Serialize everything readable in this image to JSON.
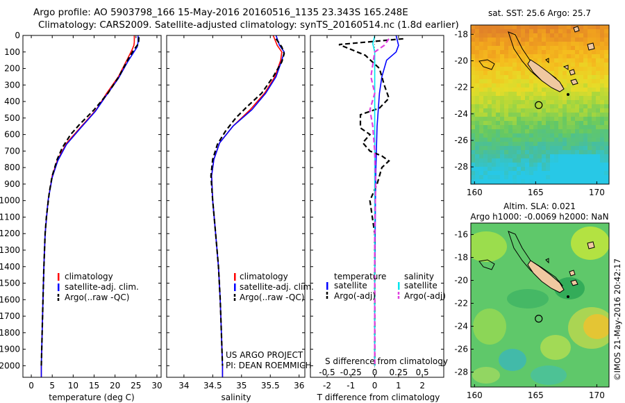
{
  "header": {
    "title_line1": "Argo profile: AO 5903798_166 15-May-2016 20160516_1135 23.343S 165.248E",
    "title_line2": "Climatology: CARS2009. Satellite-adjusted climatology: synTS_20160514.nc (1.8d earlier)"
  },
  "credit": "©IMOS 21-May-2016 20:42:17",
  "project": {
    "line1": "US ARGO PROJECT",
    "line2": "PI: DEAN ROEMMICH"
  },
  "colors": {
    "climatology": "#ff0000",
    "satellite": "#0000ff",
    "argo": "#000000",
    "salinity_satellite": "#00e5ee",
    "salinity_argo": "#e040e0",
    "land": "#f0c8a0"
  },
  "chart_data": [
    {
      "type": "line",
      "id": "temperature",
      "xlabel": "temperature (deg C)",
      "ylabel": "",
      "xlim": [
        -2,
        31
      ],
      "ylim": [
        2070,
        0
      ],
      "xticks": [
        0,
        5,
        10,
        15,
        20,
        25,
        30
      ],
      "yticks": [
        0,
        100,
        200,
        300,
        400,
        500,
        600,
        700,
        800,
        900,
        1000,
        1100,
        1200,
        1300,
        1400,
        1500,
        1600,
        1700,
        1800,
        1900,
        2000
      ],
      "legend": [
        "climatology",
        "satellite-adj. clim.",
        "Argo(..raw -QC)"
      ],
      "series": [
        {
          "name": "climatology",
          "style": "solid",
          "color": "#ff0000",
          "points": [
            [
              24.6,
              0
            ],
            [
              24.6,
              40
            ],
            [
              24.5,
              60
            ],
            [
              24.0,
              90
            ],
            [
              22.8,
              150
            ],
            [
              20.8,
              250
            ],
            [
              18.0,
              350
            ],
            [
              15.5,
              450
            ],
            [
              12.0,
              550
            ],
            [
              8.5,
              650
            ],
            [
              6.3,
              750
            ],
            [
              5.0,
              850
            ],
            [
              4.0,
              1000
            ],
            [
              3.3,
              1200
            ],
            [
              3.0,
              1400
            ],
            [
              2.8,
              1600
            ],
            [
              2.6,
              1800
            ],
            [
              2.4,
              2000
            ],
            [
              2.4,
              2070
            ]
          ]
        },
        {
          "name": "satellite-adj. clim.",
          "style": "solid",
          "color": "#0000ff",
          "points": [
            [
              25.5,
              0
            ],
            [
              25.5,
              40
            ],
            [
              25.3,
              70
            ],
            [
              24.5,
              100
            ],
            [
              23.0,
              160
            ],
            [
              20.8,
              260
            ],
            [
              18.0,
              360
            ],
            [
              15.3,
              460
            ],
            [
              11.8,
              560
            ],
            [
              8.4,
              660
            ],
            [
              6.3,
              760
            ],
            [
              5.0,
              860
            ],
            [
              4.0,
              1000
            ],
            [
              3.3,
              1200
            ],
            [
              3.0,
              1400
            ],
            [
              2.8,
              1600
            ],
            [
              2.6,
              1800
            ],
            [
              2.4,
              2000
            ],
            [
              2.4,
              2070
            ]
          ]
        },
        {
          "name": "Argo(..raw -QC)",
          "style": "dashed",
          "color": "#000000",
          "points": [
            [
              25.7,
              10
            ],
            [
              25.6,
              50
            ],
            [
              24.4,
              90
            ],
            [
              23.0,
              150
            ],
            [
              20.9,
              250
            ],
            [
              18.3,
              350
            ],
            [
              15.0,
              450
            ],
            [
              11.5,
              540
            ],
            [
              9.4,
              600
            ],
            [
              7.4,
              680
            ],
            [
              6.2,
              750
            ],
            [
              5.0,
              850
            ],
            [
              4.3,
              950
            ],
            [
              3.6,
              1100
            ],
            [
              3.3,
              1200
            ],
            [
              3.0,
              1400
            ],
            [
              2.8,
              1600
            ],
            [
              2.6,
              1800
            ],
            [
              2.4,
              2000
            ]
          ]
        }
      ]
    },
    {
      "type": "line",
      "id": "salinity",
      "xlabel": "salinity",
      "ylabel": "",
      "xlim": [
        33.7,
        36.1
      ],
      "ylim": [
        2070,
        0
      ],
      "xticks": [
        34,
        34.5,
        35,
        35.5,
        36
      ],
      "legend": [
        "climatology",
        "satellite-adj. clim.",
        "Argo(..raw -QC)"
      ],
      "series": [
        {
          "name": "climatology",
          "style": "solid",
          "color": "#ff0000",
          "points": [
            [
              35.55,
              0
            ],
            [
              35.62,
              60
            ],
            [
              35.7,
              100
            ],
            [
              35.68,
              150
            ],
            [
              35.58,
              250
            ],
            [
              35.4,
              350
            ],
            [
              35.15,
              450
            ],
            [
              34.85,
              550
            ],
            [
              34.62,
              650
            ],
            [
              34.52,
              750
            ],
            [
              34.48,
              850
            ],
            [
              34.5,
              1000
            ],
            [
              34.55,
              1200
            ],
            [
              34.6,
              1400
            ],
            [
              34.63,
              1600
            ],
            [
              34.65,
              1800
            ],
            [
              34.67,
              2000
            ],
            [
              34.67,
              2070
            ]
          ]
        },
        {
          "name": "satellite-adj. clim.",
          "style": "solid",
          "color": "#0000ff",
          "points": [
            [
              35.6,
              0
            ],
            [
              35.66,
              60
            ],
            [
              35.74,
              100
            ],
            [
              35.7,
              150
            ],
            [
              35.6,
              250
            ],
            [
              35.42,
              350
            ],
            [
              35.18,
              450
            ],
            [
              34.85,
              550
            ],
            [
              34.62,
              650
            ],
            [
              34.52,
              750
            ],
            [
              34.48,
              850
            ],
            [
              34.5,
              1000
            ],
            [
              34.55,
              1200
            ],
            [
              34.6,
              1400
            ],
            [
              34.63,
              1600
            ],
            [
              34.65,
              1800
            ],
            [
              34.67,
              2000
            ],
            [
              34.67,
              2070
            ]
          ]
        },
        {
          "name": "Argo(..raw -QC)",
          "style": "dashed",
          "color": "#000000",
          "points": [
            [
              35.6,
              20
            ],
            [
              35.7,
              70
            ],
            [
              35.74,
              110
            ],
            [
              35.7,
              160
            ],
            [
              35.55,
              250
            ],
            [
              35.35,
              350
            ],
            [
              35.1,
              430
            ],
            [
              34.9,
              500
            ],
            [
              34.72,
              580
            ],
            [
              34.58,
              660
            ],
            [
              34.5,
              750
            ],
            [
              34.47,
              850
            ],
            [
              34.5,
              1000
            ],
            [
              34.55,
              1200
            ],
            [
              34.6,
              1400
            ],
            [
              34.63,
              1600
            ],
            [
              34.65,
              1800
            ],
            [
              34.67,
              2000
            ]
          ]
        }
      ]
    },
    {
      "type": "line",
      "id": "difference",
      "xlabel": "T difference from climatology",
      "x2label": "S difference from climatology",
      "xlim": [
        -2.7,
        2.9
      ],
      "ylim": [
        2070,
        0
      ],
      "xticks": [
        -2,
        -1,
        0,
        1,
        2
      ],
      "x2ticks": [
        -0.5,
        -0.25,
        0,
        0.25,
        0.5
      ],
      "legend_groups": [
        "temperature",
        "salinity"
      ],
      "legend": [
        "satellite",
        "Argo(-adj)",
        "satellite",
        "Argo(-adj)"
      ],
      "series": [
        {
          "name": "satellite",
          "group": "temperature",
          "style": "solid",
          "color": "#0000ff",
          "points": [
            [
              0.9,
              0
            ],
            [
              1.0,
              60
            ],
            [
              0.9,
              100
            ],
            [
              0.5,
              150
            ],
            [
              0.3,
              250
            ],
            [
              0.2,
              350
            ],
            [
              0.15,
              450
            ],
            [
              0.1,
              550
            ],
            [
              0.08,
              650
            ],
            [
              0.05,
              800
            ],
            [
              0.03,
              1000
            ],
            [
              0.02,
              1200
            ],
            [
              0.0,
              1500
            ],
            [
              0.0,
              2000
            ]
          ]
        },
        {
          "name": "Argo(-adj)",
          "group": "temperature",
          "style": "dashed",
          "color": "#000000",
          "points": [
            [
              1.2,
              20
            ],
            [
              -1.5,
              55
            ],
            [
              -0.4,
              120
            ],
            [
              0.2,
              200
            ],
            [
              0.4,
              300
            ],
            [
              0.6,
              380
            ],
            [
              0.2,
              440
            ],
            [
              -0.6,
              480
            ],
            [
              -0.6,
              560
            ],
            [
              -0.2,
              600
            ],
            [
              -0.5,
              650
            ],
            [
              -0.2,
              700
            ],
            [
              0.3,
              730
            ],
            [
              0.6,
              760
            ],
            [
              0.3,
              800
            ],
            [
              0.1,
              900
            ],
            [
              -0.2,
              1000
            ],
            [
              -0.1,
              1100
            ],
            [
              0.0,
              1200
            ],
            [
              0.0,
              2000
            ]
          ]
        },
        {
          "name": "satellite",
          "group": "salinity",
          "style": "solid",
          "color": "#00e5ee",
          "points": [
            [
              0.0,
              0
            ],
            [
              -0.02,
              50
            ],
            [
              0.0,
              100
            ],
            [
              0.0,
              200
            ],
            [
              0.0,
              400
            ],
            [
              0.0,
              800
            ],
            [
              0.0,
              1400
            ],
            [
              0.0,
              2000
            ]
          ]
        },
        {
          "name": "Argo(-adj)",
          "group": "salinity",
          "style": "dashed",
          "color": "#e040e0",
          "points": [
            [
              0.15,
              20
            ],
            [
              0.1,
              60
            ],
            [
              0.0,
              100
            ],
            [
              -0.04,
              250
            ],
            [
              0.0,
              350
            ],
            [
              -0.05,
              450
            ],
            [
              -0.02,
              550
            ],
            [
              0.0,
              700
            ],
            [
              0.01,
              900
            ],
            [
              0.0,
              1200
            ],
            [
              0.0,
              2000
            ]
          ]
        }
      ]
    },
    {
      "type": "heatmap",
      "id": "sst_map",
      "title": "sat. SST: 25.6 Argo: 25.7",
      "xticks": [
        160,
        165,
        170
      ],
      "yticks": [
        -18,
        -20,
        -22,
        -24,
        -26,
        -28
      ],
      "xlim": [
        159.7,
        171
      ],
      "ylim": [
        -29.3,
        -17.3
      ],
      "argo_position": [
        165.25,
        -23.34
      ]
    },
    {
      "type": "heatmap",
      "id": "sla_map",
      "title_line1": "Altim. SLA: 0.021",
      "title_line2": "Argo h1000: -0.0069 h2000: NaN",
      "xticks": [
        160,
        165,
        170
      ],
      "yticks": [
        -16,
        -18,
        -20,
        -22,
        -24,
        -26,
        -28
      ],
      "xlim": [
        159.7,
        171
      ],
      "ylim": [
        -29.3,
        -15.0
      ],
      "argo_position": [
        165.25,
        -23.34
      ]
    }
  ]
}
